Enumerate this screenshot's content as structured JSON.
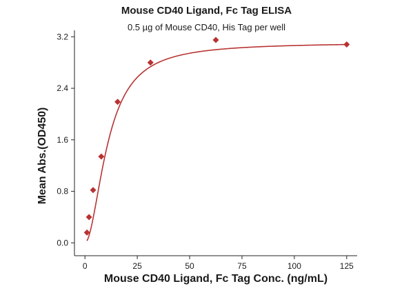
{
  "chart_data": {
    "type": "scatter",
    "title": "Mouse CD40 Ligand, Fc Tag ELISA",
    "subtitle": "0.5 µg of Mouse CD40, His Tag per well",
    "xlabel": "Mouse CD40 Ligand, Fc Tag Conc. (ng/mL)",
    "ylabel": "Mean Abs.(OD450)",
    "xlim": [
      -5,
      130
    ],
    "ylim": [
      -0.2,
      3.3
    ],
    "xticks": [
      0,
      25,
      50,
      75,
      100,
      125
    ],
    "yticks": [
      0.0,
      0.8,
      1.6,
      2.4,
      3.2
    ],
    "ytick_labels": [
      "0.0",
      "0.8",
      "1.6",
      "2.4",
      "3.2"
    ],
    "grid": false,
    "colors": {
      "series": "#b83232"
    },
    "series": [
      {
        "marker": "diamond",
        "points": [
          {
            "x": 0.98,
            "y": 0.16
          },
          {
            "x": 1.95,
            "y": 0.4
          },
          {
            "x": 3.9,
            "y": 0.82
          },
          {
            "x": 7.8,
            "y": 1.34
          },
          {
            "x": 15.6,
            "y": 2.19
          },
          {
            "x": 31.3,
            "y": 2.8
          },
          {
            "x": 62.5,
            "y": 3.15
          },
          {
            "x": 125,
            "y": 3.08
          }
        ],
        "fit_curve": true
      }
    ]
  }
}
